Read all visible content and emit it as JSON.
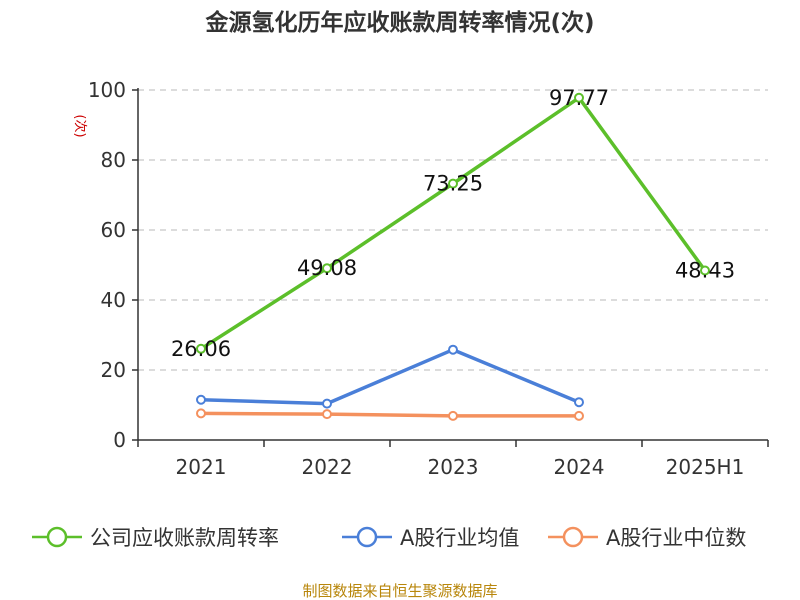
{
  "chart_data": {
    "type": "line",
    "title": "金源氢化历年应收账款周转率情况(次)",
    "ylabel": "(次)",
    "xlabel": "",
    "categories": [
      "2021",
      "2022",
      "2023",
      "2024",
      "2025H1"
    ],
    "ylim": [
      0,
      100
    ],
    "yticks": [
      0,
      20,
      40,
      60,
      80,
      100
    ],
    "grid": true,
    "legend_position": "bottom",
    "series": [
      {
        "name": "公司应收账款周转率",
        "color": "#5cbf2a",
        "values": [
          26.06,
          49.08,
          73.25,
          97.77,
          48.43
        ],
        "labels": [
          "26.06",
          "49.08",
          "73.25",
          "97.77",
          "48.43"
        ]
      },
      {
        "name": "A股行业均值",
        "color": "#4a7fd8",
        "values": [
          11.5,
          10.4,
          25.8,
          10.8,
          null
        ]
      },
      {
        "name": "A股行业中位数",
        "color": "#f4915e",
        "values": [
          7.6,
          7.4,
          6.9,
          6.9,
          null
        ]
      }
    ]
  },
  "source_text": "制图数据来自恒生聚源数据库"
}
